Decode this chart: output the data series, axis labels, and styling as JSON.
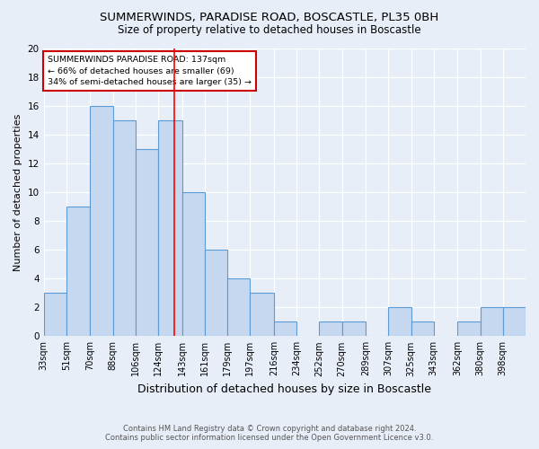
{
  "title": "SUMMERWINDS, PARADISE ROAD, BOSCASTLE, PL35 0BH",
  "subtitle": "Size of property relative to detached houses in Boscastle",
  "xlabel": "Distribution of detached houses by size in Boscastle",
  "ylabel": "Number of detached properties",
  "footer_line1": "Contains HM Land Registry data © Crown copyright and database right 2024.",
  "footer_line2": "Contains public sector information licensed under the Open Government Licence v3.0.",
  "bin_labels": [
    "33sqm",
    "51sqm",
    "70sqm",
    "88sqm",
    "106sqm",
    "124sqm",
    "143sqm",
    "161sqm",
    "179sqm",
    "197sqm",
    "216sqm",
    "234sqm",
    "252sqm",
    "270sqm",
    "289sqm",
    "307sqm",
    "325sqm",
    "343sqm",
    "362sqm",
    "380sqm",
    "398sqm"
  ],
  "bar_heights": [
    3,
    9,
    16,
    15,
    13,
    15,
    10,
    6,
    4,
    3,
    1,
    0,
    1,
    1,
    0,
    2,
    1,
    0,
    1,
    2,
    2
  ],
  "bin_edges": [
    33,
    51,
    70,
    88,
    106,
    124,
    143,
    161,
    179,
    197,
    216,
    234,
    252,
    270,
    289,
    307,
    325,
    343,
    362,
    380,
    398
  ],
  "bar_color": "#c5d8f0",
  "bar_edge_color": "#5b9bd5",
  "red_line_x": 137,
  "annotation_text_line1": "SUMMERWINDS PARADISE ROAD: 137sqm",
  "annotation_text_line2": "← 66% of detached houses are smaller (69)",
  "annotation_text_line3": "34% of semi-detached houses are larger (35) →",
  "annotation_box_color": "#ffffff",
  "annotation_box_edge": "#cc0000",
  "ylim": [
    0,
    20
  ],
  "background_color": "#e8eef8",
  "plot_bg_color": "#e8eef8",
  "grid_color": "#ffffff",
  "title_fontsize": 9.5,
  "subtitle_fontsize": 8.5,
  "tick_fontsize": 7,
  "ylabel_fontsize": 8,
  "xlabel_fontsize": 9
}
